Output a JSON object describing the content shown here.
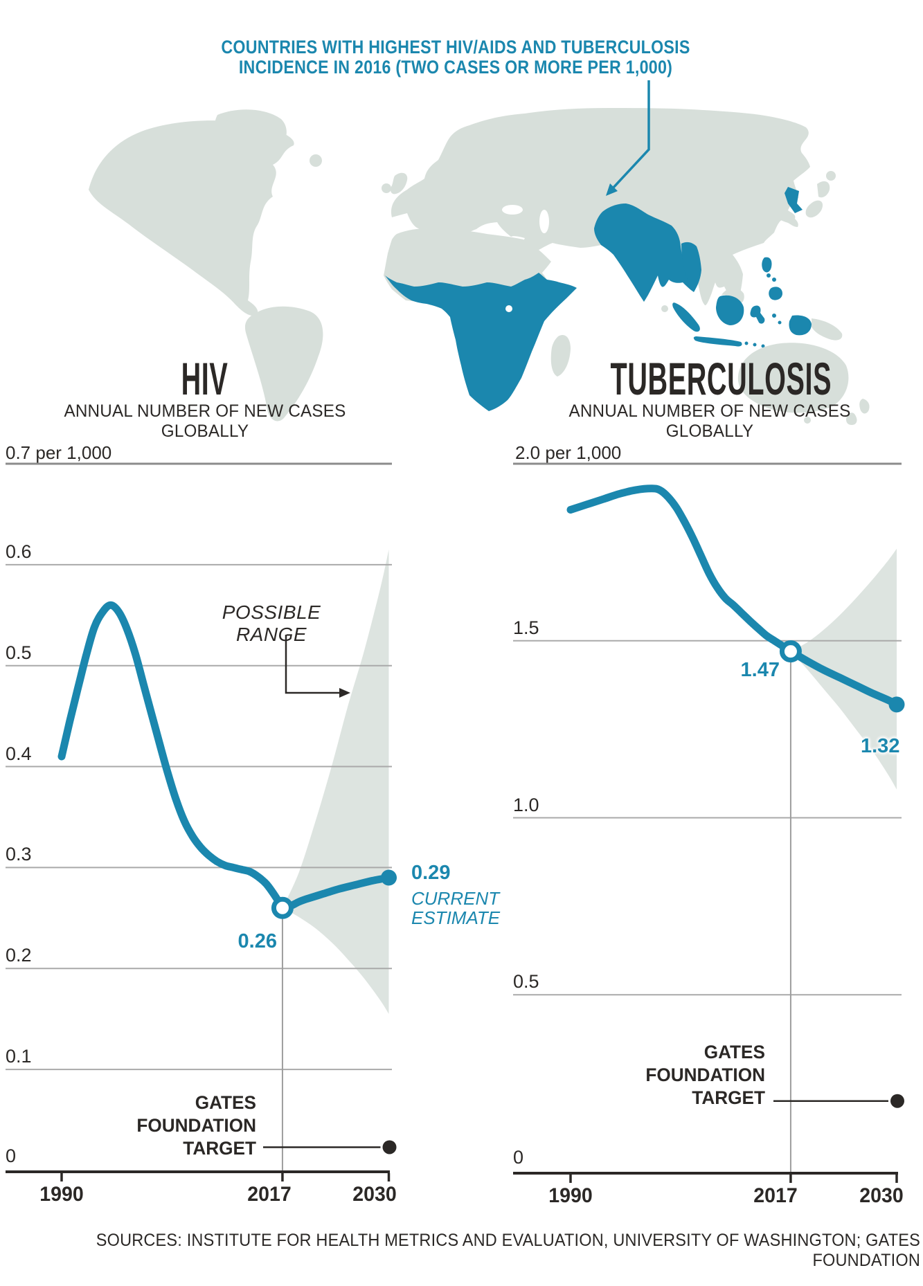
{
  "title": {
    "line1": "COUNTRIES WITH HIGHEST HIV/AIDS AND TUBERCULOSIS",
    "line2": "INCIDENCE IN 2016 (TWO CASES OR MORE PER 1,000)"
  },
  "sources": "SOURCES: INSTITUTE FOR HEALTH METRICS AND EVALUATION, UNIVERSITY OF WASHINGTON; GATES FOUNDATION",
  "colors": {
    "accent": "#1b87ae",
    "ink": "#2b2826",
    "grid": "#a9a9a9",
    "grid_dark": "#8b8b8b",
    "range_fill": "#dde4e0",
    "map_land": "#d7dfda",
    "map_highlight": "#1b87ae"
  },
  "chart_data": [
    {
      "id": "hiv",
      "type": "line",
      "title": "HIV",
      "subtitle": "ANNUAL NUMBER OF NEW CASES GLOBALLY",
      "unit_label": "0.7 per 1,000",
      "ylabel": "new cases per 1,000",
      "ylim": [
        0,
        0.7
      ],
      "grid": true,
      "y_ticks": [
        {
          "label": "0.6",
          "value": 0.6
        },
        {
          "label": "0.5",
          "value": 0.5
        },
        {
          "label": "0.4",
          "value": 0.4
        },
        {
          "label": "0.3",
          "value": 0.3
        },
        {
          "label": "0.2",
          "value": 0.2
        },
        {
          "label": "0.1",
          "value": 0.1
        },
        {
          "label": "0",
          "value": 0
        }
      ],
      "x_ticks": [
        {
          "label": "1990",
          "year": 1990
        },
        {
          "label": "2017",
          "year": 2017
        },
        {
          "label": "2030",
          "year": 2030
        }
      ],
      "series": {
        "history": [
          [
            1990,
            0.41
          ],
          [
            1991,
            0.445
          ],
          [
            1992,
            0.478
          ],
          [
            1993,
            0.51
          ],
          [
            1994,
            0.538
          ],
          [
            1995,
            0.553
          ],
          [
            1996,
            0.56
          ],
          [
            1997,
            0.553
          ],
          [
            1998,
            0.536
          ],
          [
            1999,
            0.512
          ],
          [
            2000,
            0.482
          ],
          [
            2001,
            0.452
          ],
          [
            2002,
            0.422
          ],
          [
            2003,
            0.393
          ],
          [
            2004,
            0.367
          ],
          [
            2005,
            0.346
          ],
          [
            2006,
            0.331
          ],
          [
            2007,
            0.32
          ],
          [
            2008,
            0.312
          ],
          [
            2009,
            0.306
          ],
          [
            2010,
            0.302
          ],
          [
            2011,
            0.3
          ],
          [
            2012,
            0.298
          ],
          [
            2013,
            0.296
          ],
          [
            2014,
            0.291
          ],
          [
            2015,
            0.284
          ],
          [
            2016,
            0.273
          ],
          [
            2017,
            0.26
          ]
        ],
        "projection": [
          [
            2017,
            0.26
          ],
          [
            2018,
            0.262
          ],
          [
            2019,
            0.266
          ],
          [
            2020,
            0.269
          ],
          [
            2022,
            0.274
          ],
          [
            2024,
            0.279
          ],
          [
            2026,
            0.283
          ],
          [
            2028,
            0.287
          ],
          [
            2030,
            0.29
          ]
        ]
      },
      "markers": {
        "estimate_2017": {
          "year": 2017,
          "value": 0.26,
          "label": "0.26"
        },
        "estimate_2030": {
          "year": 2030,
          "value": 0.29,
          "label": "0.29",
          "caption_line1": "CURRENT",
          "caption_line2": "ESTIMATE"
        }
      },
      "possible_range": {
        "label": "POSSIBLE RANGE",
        "upper": [
          [
            2017,
            0.26
          ],
          [
            2019,
            0.295
          ],
          [
            2021,
            0.345
          ],
          [
            2023,
            0.4
          ],
          [
            2025,
            0.46
          ],
          [
            2027,
            0.515
          ],
          [
            2029,
            0.578
          ],
          [
            2030,
            0.615
          ]
        ],
        "lower": [
          [
            2017,
            0.26
          ],
          [
            2019,
            0.251
          ],
          [
            2021,
            0.24
          ],
          [
            2023,
            0.226
          ],
          [
            2025,
            0.209
          ],
          [
            2027,
            0.19
          ],
          [
            2029,
            0.168
          ],
          [
            2030,
            0.155
          ]
        ]
      },
      "target": {
        "label_lines": [
          "GATES",
          "FOUNDATION",
          "TARGET"
        ],
        "year": 2030,
        "value": 0.023
      }
    },
    {
      "id": "tb",
      "type": "line",
      "title": "TUBERCULOSIS",
      "subtitle": "ANNUAL NUMBER OF NEW CASES GLOBALLY",
      "unit_label": "2.0 per 1,000",
      "ylabel": "new cases per 1,000",
      "ylim": [
        0,
        2.0
      ],
      "grid": true,
      "y_ticks": [
        {
          "label": "1.5",
          "value": 1.5
        },
        {
          "label": "1.0",
          "value": 1.0
        },
        {
          "label": "0.5",
          "value": 0.5
        },
        {
          "label": "0",
          "value": 0
        }
      ],
      "x_ticks": [
        {
          "label": "1990",
          "year": 1990
        },
        {
          "label": "2017",
          "year": 2017
        },
        {
          "label": "2030",
          "year": 2030
        }
      ],
      "series": {
        "history": [
          [
            1990,
            1.87
          ],
          [
            1992,
            1.885
          ],
          [
            1994,
            1.9
          ],
          [
            1996,
            1.915
          ],
          [
            1998,
            1.926
          ],
          [
            2000,
            1.93
          ],
          [
            2001,
            1.925
          ],
          [
            2002,
            1.905
          ],
          [
            2003,
            1.875
          ],
          [
            2004,
            1.835
          ],
          [
            2005,
            1.79
          ],
          [
            2006,
            1.74
          ],
          [
            2007,
            1.69
          ],
          [
            2008,
            1.65
          ],
          [
            2009,
            1.62
          ],
          [
            2010,
            1.6
          ],
          [
            2011,
            1.578
          ],
          [
            2012,
            1.556
          ],
          [
            2013,
            1.535
          ],
          [
            2014,
            1.515
          ],
          [
            2015,
            1.5
          ],
          [
            2016,
            1.485
          ],
          [
            2017,
            1.47
          ]
        ],
        "projection": [
          [
            2017,
            1.47
          ],
          [
            2019,
            1.443
          ],
          [
            2021,
            1.418
          ],
          [
            2023,
            1.396
          ],
          [
            2025,
            1.374
          ],
          [
            2027,
            1.352
          ],
          [
            2029,
            1.332
          ],
          [
            2030,
            1.32
          ]
        ]
      },
      "markers": {
        "estimate_2017": {
          "year": 2017,
          "value": 1.47,
          "label": "1.47"
        },
        "estimate_2030": {
          "year": 2030,
          "value": 1.32,
          "label": "1.32"
        }
      },
      "possible_range": {
        "upper": [
          [
            2017,
            1.47
          ],
          [
            2019,
            1.495
          ],
          [
            2021,
            1.53
          ],
          [
            2023,
            1.572
          ],
          [
            2025,
            1.62
          ],
          [
            2027,
            1.672
          ],
          [
            2029,
            1.728
          ],
          [
            2030,
            1.76
          ]
        ],
        "lower": [
          [
            2017,
            1.47
          ],
          [
            2019,
            1.42
          ],
          [
            2021,
            1.365
          ],
          [
            2023,
            1.31
          ],
          [
            2025,
            1.25
          ],
          [
            2027,
            1.19
          ],
          [
            2029,
            1.12
          ],
          [
            2030,
            1.08
          ]
        ]
      },
      "target": {
        "label_lines": [
          "GATES",
          "FOUNDATION",
          "TARGET"
        ],
        "year": 2030,
        "value": 0.2
      }
    }
  ]
}
